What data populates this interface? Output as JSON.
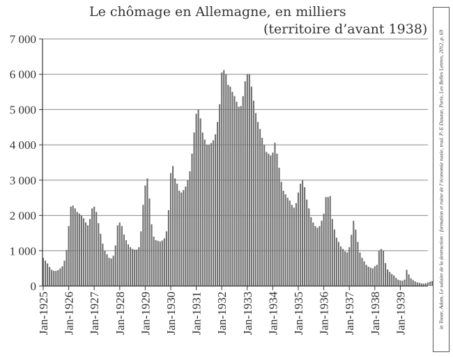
{
  "chart_data": {
    "type": "bar",
    "title": "Le chômage en Allemagne, en milliers",
    "subtitle": "(territoire d’avant 1938)",
    "source": "in Tooze, Adam, Le salaire de la destruction : formation et ruine de l’économie nazie, trad. P.-E Dauzat, Paris, Les Belles Lettres, 2012, p. 69",
    "ylim": [
      0,
      7000
    ],
    "yticks": [
      {
        "value": 0,
        "label": "0"
      },
      {
        "value": 1000,
        "label": "1 000"
      },
      {
        "value": 2000,
        "label": "2 000"
      },
      {
        "value": 3000,
        "label": "3 000"
      },
      {
        "value": 4000,
        "label": "4 000"
      },
      {
        "value": 5000,
        "label": "5 000"
      },
      {
        "value": 6000,
        "label": "6 000"
      },
      {
        "value": 7000,
        "label": "7 000"
      }
    ],
    "xticks": [
      "Jan-1925",
      "Jan-1926",
      "Jan-1927",
      "Jan-1928",
      "Jan-1929",
      "Jan-1930",
      "Jan-1931",
      "Jan-1932",
      "Jan-1933",
      "Jan-1934",
      "Jan-1935",
      "Jan-1936",
      "Jan-1937",
      "Jan-1938",
      "Jan-1939"
    ],
    "grid": true,
    "bar_color": "#6e6e6e",
    "series": [
      {
        "values": [
          800,
          720,
          640,
          540,
          460,
          430,
          430,
          450,
          500,
          560,
          720,
          1020,
          1700,
          2250,
          2280,
          2200,
          2100,
          2050,
          2000,
          1920,
          1800,
          1720,
          1900,
          2200,
          2250,
          2100,
          1780,
          1480,
          1200,
          1000,
          900,
          800,
          780,
          860,
          1150,
          1720,
          1800,
          1700,
          1460,
          1300,
          1180,
          1100,
          1050,
          1030,
          1030,
          1100,
          1550,
          2300,
          2850,
          3050,
          2480,
          1750,
          1400,
          1300,
          1280,
          1260,
          1290,
          1350,
          1550,
          2150,
          3200,
          3400,
          3050,
          2900,
          2700,
          2650,
          2720,
          2820,
          3000,
          3250,
          3750,
          4350,
          4880,
          5000,
          4750,
          4350,
          4150,
          4000,
          4000,
          4050,
          4130,
          4300,
          4650,
          5150,
          6050,
          6120,
          6000,
          5700,
          5650,
          5500,
          5380,
          5220,
          5080,
          5100,
          5380,
          5800,
          6000,
          6000,
          5650,
          5250,
          4900,
          4650,
          4450,
          4200,
          4000,
          3800,
          3750,
          3700,
          3780,
          4060,
          3750,
          3350,
          2950,
          2700,
          2600,
          2500,
          2420,
          2300,
          2220,
          2350,
          2650,
          2900,
          3000,
          2800,
          2450,
          2200,
          1950,
          1800,
          1700,
          1650,
          1700,
          1850,
          2050,
          2520,
          2520,
          2550,
          1900,
          1600,
          1370,
          1250,
          1120,
          1050,
          980,
          950,
          1100,
          1450,
          1850,
          1600,
          1250,
          950,
          800,
          700,
          600,
          550,
          520,
          500,
          560,
          600,
          1000,
          1050,
          1000,
          650,
          470,
          400,
          340,
          300,
          230,
          180,
          160,
          150,
          180,
          460,
          330,
          220,
          170,
          130,
          100,
          90,
          75,
          70,
          80,
          100,
          120,
          140
        ]
      }
    ]
  }
}
